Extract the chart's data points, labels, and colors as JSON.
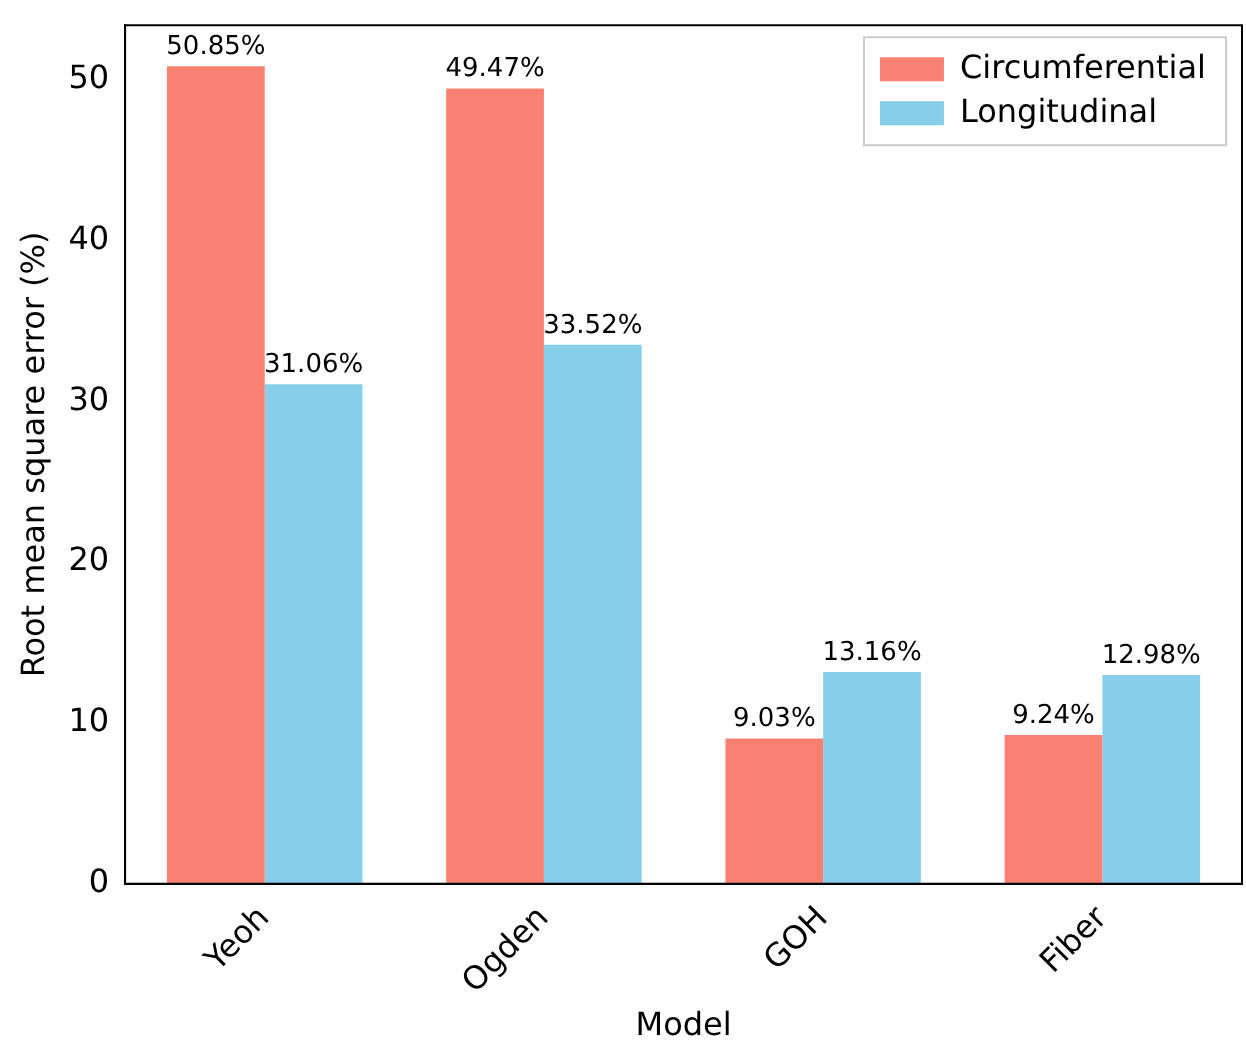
{
  "chart_data": {
    "type": "bar",
    "xlabel": "Model",
    "ylabel": "Root mean square error (%)",
    "categories": [
      "Yeoh",
      "Ogden",
      "GOH",
      "Fiber"
    ],
    "series": [
      {
        "name": "Circumferential",
        "color": "#fa8072",
        "values": [
          50.85,
          49.47,
          9.03,
          9.24
        ],
        "value_labels": [
          "50.85%",
          "49.47%",
          "9.03%",
          "9.24%"
        ]
      },
      {
        "name": "Longitudinal",
        "color": "#87ceeb",
        "values": [
          31.06,
          33.52,
          13.16,
          12.98
        ],
        "value_labels": [
          "31.06%",
          "33.52%",
          "13.16%",
          "12.98%"
        ]
      }
    ],
    "ylim": [
      0,
      53.4
    ],
    "yticks": [
      0,
      10,
      20,
      30,
      40,
      50
    ],
    "grid": false,
    "legend": "top right"
  }
}
